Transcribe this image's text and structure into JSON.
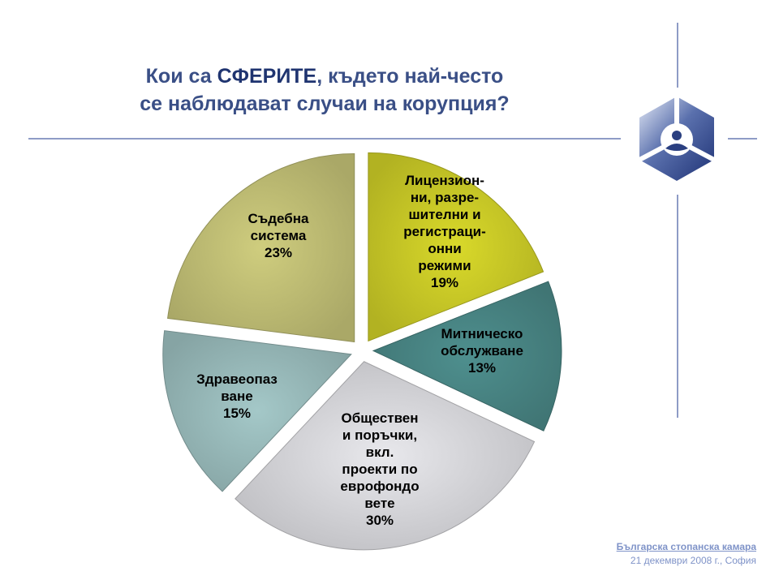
{
  "title": {
    "part1": "Кои са ",
    "emphasis": "СФЕРИТЕ",
    "part2": ", където най-често",
    "line2": "се наблюдават случаи на корупция?"
  },
  "footer": {
    "organization": "Българска стопанска камара",
    "date_place": "21 декември 2008 г., София"
  },
  "logo": {
    "icon": "chamber-logo-icon"
  },
  "chart_data": {
    "type": "pie",
    "title": "Кои са СФЕРИТЕ, където най-често се наблюдават случаи на корупция?",
    "unit": "%",
    "exploded": true,
    "slices": [
      {
        "label_lines": [
          "Лицензион-",
          "ни, разре-",
          "шителни и",
          "регистраци-",
          "онни",
          "режими"
        ],
        "pct_label": "19%",
        "value": 19,
        "color": "#d9d92a"
      },
      {
        "label_lines": [
          "Митническо",
          "обслужване"
        ],
        "pct_label": "13%",
        "value": 13,
        "color": "#4e8f8e"
      },
      {
        "label_lines": [
          "Обществен",
          "и поръчки,",
          "вкл.",
          "проекти по",
          "еврофондо",
          "вете"
        ],
        "pct_label": "30%",
        "value": 30,
        "color": "#e8e8ec"
      },
      {
        "label_lines": [
          "Здравеопаз",
          "ване"
        ],
        "pct_label": "15%",
        "value": 15,
        "color": "#a4c8c8"
      },
      {
        "label_lines": [
          "Съдебна",
          "система"
        ],
        "pct_label": "23%",
        "value": 23,
        "color": "#cfcd7e"
      }
    ]
  }
}
